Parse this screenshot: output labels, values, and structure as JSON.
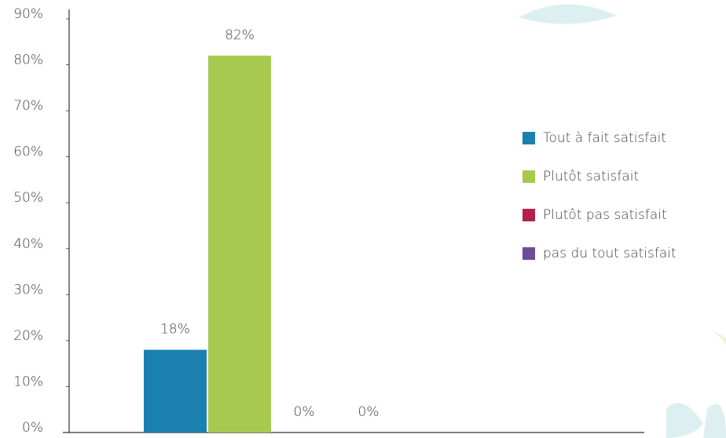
{
  "chart_data": {
    "type": "bar",
    "categories": [
      null
    ],
    "series": [
      {
        "name": "Tout à fait satisfait",
        "color": "#1a80b0",
        "values": [
          18
        ],
        "value_labels": [
          "18%"
        ]
      },
      {
        "name": "Plutôt satisfait",
        "color": "#a8c94f",
        "values": [
          82
        ],
        "value_labels": [
          "82%"
        ]
      },
      {
        "name": "Plutôt pas satisfait",
        "color": "#b5204a",
        "values": [
          0
        ],
        "value_labels": [
          "0%"
        ]
      },
      {
        "name": "pas du tout satisfait",
        "color": "#6b4b9a",
        "values": [
          0
        ],
        "value_labels": [
          "0%"
        ]
      }
    ],
    "ylim": [
      0,
      90
    ],
    "yticks": [
      {
        "value": 0,
        "label": "0%"
      },
      {
        "value": 10,
        "label": "10%"
      },
      {
        "value": 20,
        "label": "20%"
      },
      {
        "value": 30,
        "label": "30%"
      },
      {
        "value": 40,
        "label": "40%"
      },
      {
        "value": 50,
        "label": "50%"
      },
      {
        "value": 60,
        "label": "60%"
      },
      {
        "value": 70,
        "label": "70%"
      },
      {
        "value": 80,
        "label": "80%"
      },
      {
        "value": 90,
        "label": "90%"
      }
    ],
    "grid": false,
    "legend": "right"
  }
}
